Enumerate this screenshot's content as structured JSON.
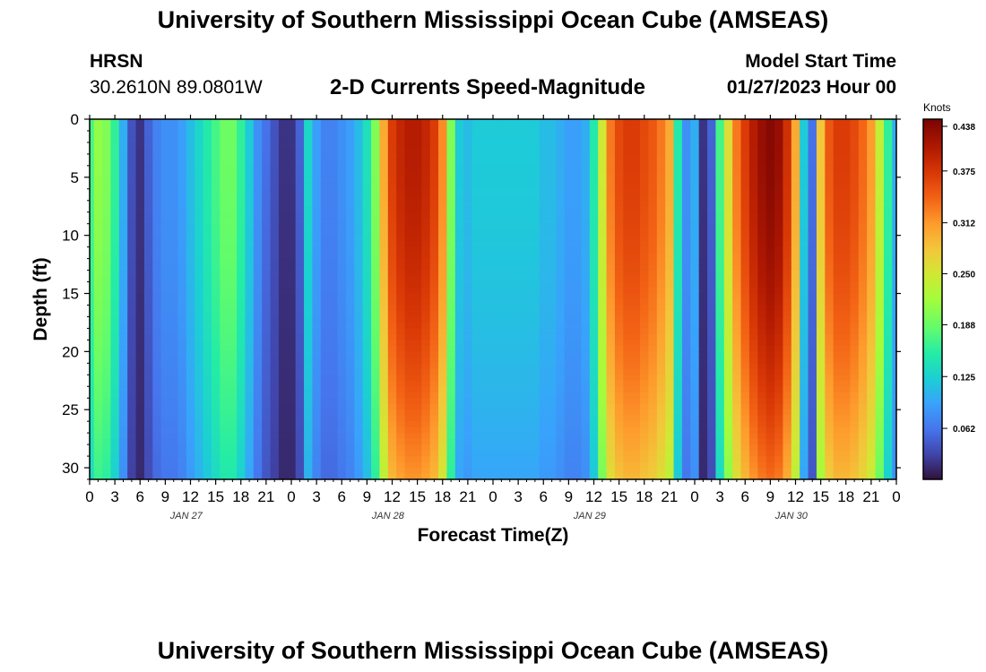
{
  "page": {
    "title": "University of Southern Mississippi Ocean Cube (AMSEAS)",
    "title_bottom": "University of Southern Mississippi Ocean Cube (AMSEAS)",
    "station": "HRSN",
    "coords": "30.2610N  89.0801W",
    "subtitle": "2-D Currents Speed-Magnitude",
    "model_label": "Model Start Time",
    "model_start": "01/27/2023 Hour 00"
  },
  "chart_data": {
    "type": "heatmap",
    "title": "2-D Currents Speed-Magnitude",
    "xlabel": "Forecast Time(Z)",
    "ylabel": "Depth (ft)",
    "x_ticks": [
      "0",
      "3",
      "6",
      "9",
      "12",
      "15",
      "18",
      "21",
      "0",
      "3",
      "6",
      "9",
      "12",
      "15",
      "18",
      "21",
      "0",
      "3",
      "6",
      "9",
      "12",
      "15",
      "18",
      "21",
      "0",
      "3",
      "6",
      "9",
      "12",
      "15",
      "18",
      "21",
      "0"
    ],
    "date_labels": [
      "JAN 27",
      "JAN 28",
      "JAN 29",
      "JAN 30"
    ],
    "y_ticks": [
      "0",
      "5",
      "10",
      "15",
      "20",
      "25",
      "30"
    ],
    "ylim": [
      0,
      31
    ],
    "x_range_hours": [
      0,
      96
    ],
    "colorbar": {
      "unit": "Knots",
      "ticks": [
        "0.438",
        "0.375",
        "0.312",
        "0.250",
        "0.188",
        "0.125",
        "0.062"
      ],
      "range": [
        0.0,
        0.438
      ]
    },
    "surface_speed_profile_hours": [
      0,
      1,
      2,
      3,
      4,
      5,
      6,
      7,
      8,
      9,
      10,
      11,
      12,
      13,
      14,
      15,
      16,
      17,
      18,
      19,
      20,
      21,
      22,
      23,
      24,
      25,
      26,
      27,
      28,
      29,
      30,
      31,
      32,
      33,
      34,
      35,
      36,
      37,
      38,
      39,
      40,
      41,
      42,
      43,
      44,
      45,
      46,
      47,
      48,
      49,
      50,
      51,
      52,
      53,
      54,
      55,
      56,
      57,
      58,
      59,
      60,
      61,
      62,
      63,
      64,
      65,
      66,
      67,
      68,
      69,
      70,
      71,
      72,
      73,
      74,
      75,
      76,
      77,
      78,
      79,
      80,
      81,
      82,
      83,
      84,
      85,
      86,
      87,
      88,
      89,
      90,
      91,
      92,
      93,
      94,
      95,
      96
    ],
    "surface_speed_profile_knots": [
      0.17,
      0.21,
      0.2,
      0.16,
      0.1,
      0.04,
      0.02,
      0.05,
      0.07,
      0.08,
      0.08,
      0.09,
      0.11,
      0.13,
      0.15,
      0.17,
      0.19,
      0.19,
      0.16,
      0.12,
      0.08,
      0.06,
      0.04,
      0.02,
      0.02,
      0.05,
      0.13,
      0.09,
      0.07,
      0.07,
      0.08,
      0.09,
      0.11,
      0.14,
      0.2,
      0.3,
      0.37,
      0.39,
      0.4,
      0.4,
      0.39,
      0.37,
      0.32,
      0.2,
      0.12,
      0.11,
      0.12,
      0.12,
      0.12,
      0.12,
      0.12,
      0.12,
      0.12,
      0.12,
      0.11,
      0.11,
      0.1,
      0.09,
      0.09,
      0.1,
      0.15,
      0.25,
      0.33,
      0.36,
      0.37,
      0.37,
      0.36,
      0.35,
      0.33,
      0.3,
      0.15,
      0.08,
      0.1,
      0.02,
      0.05,
      0.17,
      0.26,
      0.33,
      0.37,
      0.4,
      0.42,
      0.43,
      0.42,
      0.38,
      0.3,
      0.12,
      0.06,
      0.28,
      0.35,
      0.37,
      0.37,
      0.36,
      0.34,
      0.31,
      0.24,
      0.16,
      0.1
    ]
  }
}
